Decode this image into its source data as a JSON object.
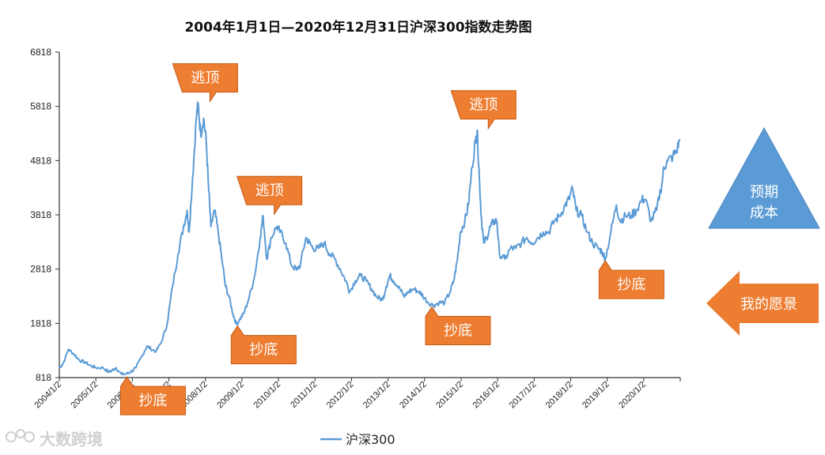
{
  "chart_data": {
    "type": "line",
    "title": "2004年1月1日—2020年12月31日沪深300指数走势图",
    "xlabel": "",
    "ylabel": "",
    "ylim": [
      818,
      6818
    ],
    "yticks": [
      "6818",
      "5818",
      "4818",
      "3818",
      "2818",
      "1818",
      "818"
    ],
    "xticks": [
      "2004/1/2",
      "2005/1/2",
      "2006/1/2",
      "2007/1/2",
      "2008/1/2",
      "2009/1/2",
      "2010/1/2",
      "2011/1/2",
      "2012/1/2",
      "2013/1/2",
      "2014/1/2",
      "2015/1/2",
      "2016/1/2",
      "2017/1/2",
      "2018/1/2",
      "2019/1/2",
      "2020/1/2"
    ],
    "x_range": [
      2004.0,
      2021.0
    ],
    "series": [
      {
        "name": "沪深300",
        "color": "#5b9bd5",
        "points": [
          [
            2004.0,
            1000
          ],
          [
            2004.1,
            1070
          ],
          [
            2004.25,
            1340
          ],
          [
            2004.4,
            1250
          ],
          [
            2004.55,
            1140
          ],
          [
            2004.7,
            1100
          ],
          [
            2004.85,
            1040
          ],
          [
            2005.0,
            1000
          ],
          [
            2005.2,
            1000
          ],
          [
            2005.35,
            920
          ],
          [
            2005.45,
            950
          ],
          [
            2005.55,
            1000
          ],
          [
            2005.7,
            880
          ],
          [
            2005.85,
            890
          ],
          [
            2005.95,
            920
          ],
          [
            2006.1,
            1000
          ],
          [
            2006.25,
            1200
          ],
          [
            2006.4,
            1400
          ],
          [
            2006.5,
            1350
          ],
          [
            2006.65,
            1300
          ],
          [
            2006.8,
            1480
          ],
          [
            2006.95,
            1800
          ],
          [
            2007.1,
            2500
          ],
          [
            2007.25,
            3100
          ],
          [
            2007.4,
            3600
          ],
          [
            2007.5,
            3900
          ],
          [
            2007.55,
            3500
          ],
          [
            2007.65,
            4500
          ],
          [
            2007.75,
            5600
          ],
          [
            2007.8,
            5877
          ],
          [
            2007.87,
            5300
          ],
          [
            2007.95,
            5600
          ],
          [
            2008.02,
            5200
          ],
          [
            2008.08,
            4400
          ],
          [
            2008.15,
            3600
          ],
          [
            2008.25,
            3900
          ],
          [
            2008.35,
            3500
          ],
          [
            2008.45,
            3000
          ],
          [
            2008.55,
            2500
          ],
          [
            2008.65,
            2300
          ],
          [
            2008.75,
            2000
          ],
          [
            2008.85,
            1800
          ],
          [
            2008.95,
            1900
          ],
          [
            2009.05,
            2000
          ],
          [
            2009.2,
            2300
          ],
          [
            2009.35,
            2700
          ],
          [
            2009.5,
            3400
          ],
          [
            2009.58,
            3800
          ],
          [
            2009.68,
            3000
          ],
          [
            2009.8,
            3400
          ],
          [
            2009.95,
            3600
          ],
          [
            2010.05,
            3500
          ],
          [
            2010.2,
            3300
          ],
          [
            2010.35,
            2900
          ],
          [
            2010.5,
            2800
          ],
          [
            2010.6,
            2900
          ],
          [
            2010.75,
            3400
          ],
          [
            2010.85,
            3300
          ],
          [
            2010.95,
            3200
          ],
          [
            2011.1,
            3200
          ],
          [
            2011.25,
            3300
          ],
          [
            2011.4,
            3100
          ],
          [
            2011.55,
            3000
          ],
          [
            2011.7,
            2800
          ],
          [
            2011.85,
            2600
          ],
          [
            2011.95,
            2400
          ],
          [
            2012.1,
            2600
          ],
          [
            2012.25,
            2700
          ],
          [
            2012.4,
            2600
          ],
          [
            2012.55,
            2450
          ],
          [
            2012.7,
            2300
          ],
          [
            2012.85,
            2250
          ],
          [
            2012.95,
            2500
          ],
          [
            2013.05,
            2700
          ],
          [
            2013.15,
            2600
          ],
          [
            2013.3,
            2500
          ],
          [
            2013.45,
            2300
          ],
          [
            2013.55,
            2400
          ],
          [
            2013.7,
            2450
          ],
          [
            2013.85,
            2400
          ],
          [
            2013.95,
            2330
          ],
          [
            2014.1,
            2200
          ],
          [
            2014.25,
            2150
          ],
          [
            2014.4,
            2200
          ],
          [
            2014.55,
            2200
          ],
          [
            2014.7,
            2400
          ],
          [
            2014.8,
            2600
          ],
          [
            2014.9,
            3000
          ],
          [
            2014.98,
            3500
          ],
          [
            2015.1,
            3700
          ],
          [
            2015.2,
            4000
          ],
          [
            2015.3,
            4700
          ],
          [
            2015.4,
            5200
          ],
          [
            2015.44,
            5380
          ],
          [
            2015.5,
            4500
          ],
          [
            2015.55,
            3800
          ],
          [
            2015.62,
            3300
          ],
          [
            2015.7,
            3400
          ],
          [
            2015.8,
            3600
          ],
          [
            2015.9,
            3700
          ],
          [
            2015.98,
            3700
          ],
          [
            2016.05,
            3100
          ],
          [
            2016.2,
            3000
          ],
          [
            2016.35,
            3200
          ],
          [
            2016.5,
            3200
          ],
          [
            2016.65,
            3300
          ],
          [
            2016.8,
            3400
          ],
          [
            2016.95,
            3300
          ],
          [
            2017.1,
            3400
          ],
          [
            2017.25,
            3500
          ],
          [
            2017.4,
            3500
          ],
          [
            2017.55,
            3700
          ],
          [
            2017.7,
            3800
          ],
          [
            2017.85,
            4000
          ],
          [
            2017.95,
            4100
          ],
          [
            2018.05,
            4300
          ],
          [
            2018.15,
            3900
          ],
          [
            2018.3,
            3800
          ],
          [
            2018.45,
            3500
          ],
          [
            2018.6,
            3300
          ],
          [
            2018.75,
            3200
          ],
          [
            2018.85,
            3150
          ],
          [
            2018.95,
            3000
          ],
          [
            2019.1,
            3500
          ],
          [
            2019.25,
            4000
          ],
          [
            2019.35,
            3700
          ],
          [
            2019.5,
            3800
          ],
          [
            2019.65,
            3800
          ],
          [
            2019.8,
            3900
          ],
          [
            2019.95,
            4100
          ],
          [
            2020.05,
            4100
          ],
          [
            2020.2,
            3700
          ],
          [
            2020.35,
            3900
          ],
          [
            2020.5,
            4400
          ],
          [
            2020.55,
            4700
          ],
          [
            2020.65,
            4800
          ],
          [
            2020.8,
            4900
          ],
          [
            2020.9,
            5000
          ],
          [
            2020.99,
            5211
          ]
        ]
      }
    ],
    "legend": {
      "position": "bottom",
      "label": "沪深300"
    },
    "annotations": [
      {
        "text": "逃顶",
        "x": 2007.82,
        "y": 5877,
        "kind": "top"
      },
      {
        "text": "逃顶",
        "x": 2009.58,
        "y": 3800,
        "kind": "top"
      },
      {
        "text": "逃顶",
        "x": 2015.44,
        "y": 5380,
        "kind": "top"
      },
      {
        "text": "抄底",
        "x": 2005.85,
        "y": 860,
        "kind": "bottom"
      },
      {
        "text": "抄底",
        "x": 2008.88,
        "y": 1800,
        "kind": "bottom"
      },
      {
        "text": "抄底",
        "x": 2014.2,
        "y": 2150,
        "kind": "bottom"
      },
      {
        "text": "抄底",
        "x": 2018.95,
        "y": 3000,
        "kind": "bottom"
      }
    ]
  },
  "side_labels": {
    "triangle_line1": "预期",
    "triangle_line2": "成本",
    "arrow_label": "我的愿景"
  },
  "watermark": {
    "text": "大数跨境"
  },
  "colors": {
    "accent_orange": "#ed7d31",
    "triangle_blue": "#5b9bd5",
    "axis": "#333333",
    "line": "#5b9bd5"
  }
}
